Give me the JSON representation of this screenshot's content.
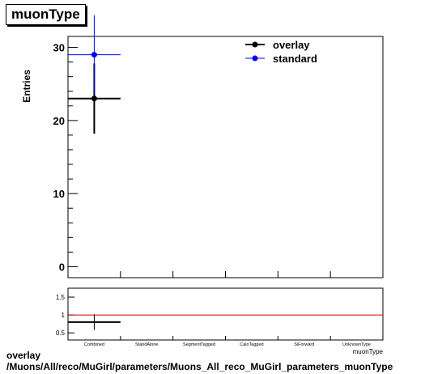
{
  "title": "muonType",
  "footer": {
    "line1": "overlay",
    "line2": "/Muons/All/reco/MuGirl/parameters/Muons_All_reco_MuGirl_parameters_muonType"
  },
  "chart_data": [
    {
      "type": "scatter",
      "ylabel": "Entries",
      "xlabel": "muonType",
      "ylim": [
        -1.5,
        31.5
      ],
      "yticks": [
        0,
        10,
        20,
        30
      ],
      "categories": [
        "Combined",
        "StandAlone",
        "SegmentTagged",
        "CaloTagged",
        "SiForward",
        "UnknownType"
      ],
      "legend_position": "top-right",
      "series": [
        {
          "name": "overlay",
          "color": "#000000",
          "points": [
            {
              "category": "Combined",
              "y": 23,
              "yerr": 4.8
            }
          ]
        },
        {
          "name": "standard",
          "color": "#0000ff",
          "points": [
            {
              "category": "Combined",
              "y": 29,
              "yerr": 5.4
            }
          ]
        }
      ]
    },
    {
      "type": "scatter",
      "ylim": [
        0.3,
        1.75
      ],
      "yticks": [
        0.5,
        1,
        1.5
      ],
      "ytick_labels": [
        "0.5",
        "1",
        "1.5"
      ],
      "reference_line": {
        "y": 1,
        "color": "#cc0000"
      },
      "series": [
        {
          "color": "#000000",
          "points": [
            {
              "category": "Combined",
              "y": 0.8,
              "yerr": 0.22
            }
          ]
        }
      ]
    }
  ]
}
